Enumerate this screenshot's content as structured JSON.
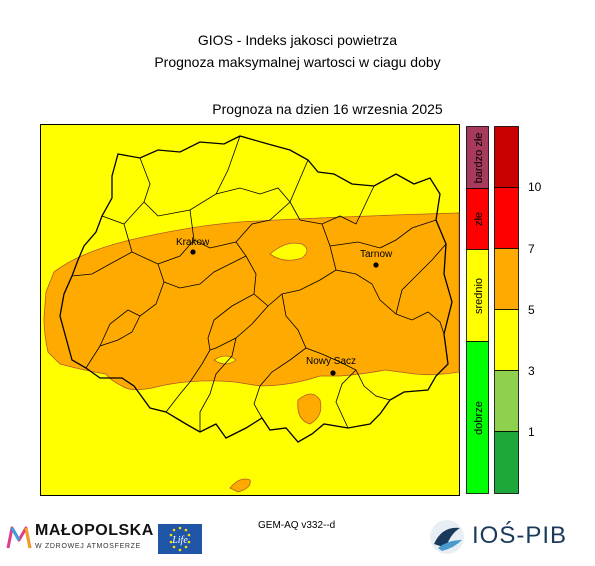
{
  "header": {
    "title_line1": "GIOS - Indeks jakosci powietrza",
    "title_line2": "Prognoza maksymalnej wartosci w ciagu doby",
    "forecast_date": "Prognoza na dzien  16 wrzesnia 2025"
  },
  "map": {
    "cities": [
      {
        "name": "Krakow"
      },
      {
        "name": "Tarnow"
      },
      {
        "name": "Nowy Sacz"
      }
    ]
  },
  "categories": [
    {
      "label": "bardzo złe",
      "color": "#a83a5c"
    },
    {
      "label": "złe",
      "color": "#ff0000"
    },
    {
      "label": "srednio",
      "color": "#ffff00"
    },
    {
      "label": "dobrze",
      "color": "#00ff00"
    }
  ],
  "scale": {
    "tick_labels": [
      "10",
      "7",
      "5",
      "3",
      "1"
    ],
    "bands_top_to_bottom": [
      "#c80000",
      "#ff0000",
      "#ffaa00",
      "#ffff00",
      "#8fd14f",
      "#1ea83c"
    ]
  },
  "footer": {
    "model": "GEM-AQ v332--d",
    "logo_left_name": "MAŁOPOLSKA",
    "logo_left_sub": "W ZDROWEJ ATMOSFERZE",
    "logo_eu_text": "Life",
    "logo_right": "IOŚ-PIB"
  },
  "colors": {
    "map_background": "#ffff00",
    "high_zone": "#ffaa00",
    "border": "#000000"
  }
}
